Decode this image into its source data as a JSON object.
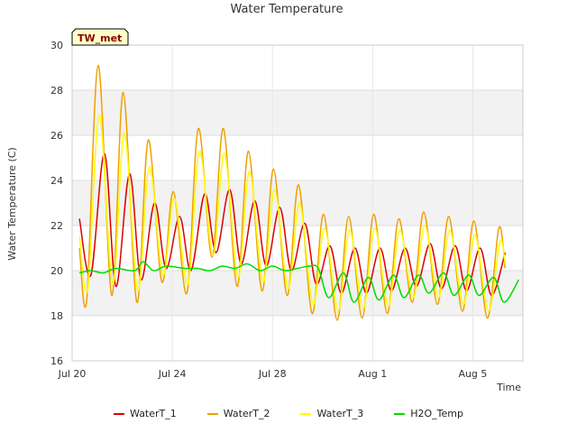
{
  "chart_data": {
    "type": "line",
    "title": "Water Temperature",
    "xlabel": "Time",
    "ylabel": "Water Temperature (C)",
    "station_tag": "TW_met",
    "ylim": [
      16,
      30
    ],
    "yticks": [
      "16",
      "18",
      "20",
      "22",
      "24",
      "26",
      "28",
      "30"
    ],
    "xlim": [
      "2023-07-20",
      "2023-08-07"
    ],
    "xticks": [
      {
        "date": "2023-07-20",
        "label": "Jul 20"
      },
      {
        "date": "2023-07-24",
        "label": "Jul 24"
      },
      {
        "date": "2023-07-28",
        "label": "Jul 28"
      },
      {
        "date": "2023-08-01",
        "label": "Aug 1"
      },
      {
        "date": "2023-08-05",
        "label": "Aug 5"
      }
    ],
    "grid": true,
    "legend_position": "bottom",
    "series": [
      {
        "name": "WaterT_1",
        "color": "#dd0000",
        "data": [
          [
            "2023-07-20T07:00",
            22.3
          ],
          [
            "2023-07-20T18:00",
            19.8
          ],
          [
            "2023-07-21T07:00",
            25.2
          ],
          [
            "2023-07-21T18:00",
            19.3
          ],
          [
            "2023-07-22T07:00",
            24.3
          ],
          [
            "2023-07-22T18:00",
            19.6
          ],
          [
            "2023-07-23T07:00",
            23.0
          ],
          [
            "2023-07-23T18:00",
            20.1
          ],
          [
            "2023-07-24T07:00",
            22.4
          ],
          [
            "2023-07-24T18:00",
            20.0
          ],
          [
            "2023-07-25T07:00",
            23.4
          ],
          [
            "2023-07-25T18:00",
            20.8
          ],
          [
            "2023-07-26T07:00",
            23.6
          ],
          [
            "2023-07-26T18:00",
            20.3
          ],
          [
            "2023-07-27T07:00",
            23.1
          ],
          [
            "2023-07-27T18:00",
            20.2
          ],
          [
            "2023-07-28T07:00",
            22.8
          ],
          [
            "2023-07-28T18:00",
            20.0
          ],
          [
            "2023-07-29T07:00",
            22.1
          ],
          [
            "2023-07-29T18:00",
            19.4
          ],
          [
            "2023-07-30T07:00",
            21.1
          ],
          [
            "2023-07-30T18:00",
            19.0
          ],
          [
            "2023-07-31T07:00",
            21.0
          ],
          [
            "2023-07-31T18:00",
            19.0
          ],
          [
            "2023-08-01T07:00",
            21.0
          ],
          [
            "2023-08-01T18:00",
            19.1
          ],
          [
            "2023-08-02T07:00",
            21.0
          ],
          [
            "2023-08-02T18:00",
            19.3
          ],
          [
            "2023-08-03T07:00",
            21.2
          ],
          [
            "2023-08-03T18:00",
            19.2
          ],
          [
            "2023-08-04T07:00",
            21.1
          ],
          [
            "2023-08-04T18:00",
            19.1
          ],
          [
            "2023-08-05T07:00",
            21.0
          ],
          [
            "2023-08-05T18:00",
            18.9
          ],
          [
            "2023-08-06T07:00",
            20.8
          ]
        ]
      },
      {
        "name": "WaterT_2",
        "color": "#f0a000",
        "data": [
          [
            "2023-07-20T07:00",
            21.0
          ],
          [
            "2023-07-20T14:00",
            18.7
          ],
          [
            "2023-07-21T01:00",
            29.1
          ],
          [
            "2023-07-21T14:00",
            18.9
          ],
          [
            "2023-07-22T01:00",
            27.9
          ],
          [
            "2023-07-22T14:00",
            18.6
          ],
          [
            "2023-07-23T01:00",
            25.8
          ],
          [
            "2023-07-23T14:00",
            19.5
          ],
          [
            "2023-07-24T01:00",
            23.5
          ],
          [
            "2023-07-24T14:00",
            19.0
          ],
          [
            "2023-07-25T01:00",
            26.3
          ],
          [
            "2023-07-25T14:00",
            20.6
          ],
          [
            "2023-07-26T01:00",
            26.3
          ],
          [
            "2023-07-26T14:00",
            19.3
          ],
          [
            "2023-07-27T01:00",
            25.3
          ],
          [
            "2023-07-27T14:00",
            19.1
          ],
          [
            "2023-07-28T01:00",
            24.5
          ],
          [
            "2023-07-28T14:00",
            18.9
          ],
          [
            "2023-07-29T01:00",
            23.8
          ],
          [
            "2023-07-29T14:00",
            18.1
          ],
          [
            "2023-07-30T01:00",
            22.5
          ],
          [
            "2023-07-30T14:00",
            17.8
          ],
          [
            "2023-07-31T01:00",
            22.4
          ],
          [
            "2023-07-31T14:00",
            17.9
          ],
          [
            "2023-08-01T01:00",
            22.5
          ],
          [
            "2023-08-01T14:00",
            18.1
          ],
          [
            "2023-08-02T01:00",
            22.3
          ],
          [
            "2023-08-02T14:00",
            18.6
          ],
          [
            "2023-08-03T01:00",
            22.6
          ],
          [
            "2023-08-03T14:00",
            18.5
          ],
          [
            "2023-08-04T01:00",
            22.4
          ],
          [
            "2023-08-04T14:00",
            18.2
          ],
          [
            "2023-08-05T01:00",
            22.2
          ],
          [
            "2023-08-05T14:00",
            17.9
          ],
          [
            "2023-08-06T01:00",
            21.9
          ],
          [
            "2023-08-06T07:00",
            20.1
          ]
        ]
      },
      {
        "name": "WaterT_3",
        "color": "#ffff00",
        "data": [
          [
            "2023-07-20T07:00",
            21.5
          ],
          [
            "2023-07-20T15:00",
            19.2
          ],
          [
            "2023-07-21T02:00",
            26.9
          ],
          [
            "2023-07-21T15:00",
            19.4
          ],
          [
            "2023-07-22T02:00",
            26.1
          ],
          [
            "2023-07-22T15:00",
            19.1
          ],
          [
            "2023-07-23T02:00",
            24.6
          ],
          [
            "2023-07-23T15:00",
            19.8
          ],
          [
            "2023-07-24T02:00",
            23.2
          ],
          [
            "2023-07-24T15:00",
            19.4
          ],
          [
            "2023-07-25T02:00",
            25.3
          ],
          [
            "2023-07-25T15:00",
            20.7
          ],
          [
            "2023-07-26T02:00",
            25.2
          ],
          [
            "2023-07-26T15:00",
            19.7
          ],
          [
            "2023-07-27T02:00",
            24.4
          ],
          [
            "2023-07-27T15:00",
            19.5
          ],
          [
            "2023-07-28T02:00",
            23.6
          ],
          [
            "2023-07-28T15:00",
            19.2
          ],
          [
            "2023-07-29T02:00",
            23.0
          ],
          [
            "2023-07-29T15:00",
            18.5
          ],
          [
            "2023-07-30T02:00",
            21.9
          ],
          [
            "2023-07-30T15:00",
            18.2
          ],
          [
            "2023-07-31T02:00",
            21.8
          ],
          [
            "2023-07-31T15:00",
            18.3
          ],
          [
            "2023-08-01T02:00",
            21.9
          ],
          [
            "2023-08-01T15:00",
            18.4
          ],
          [
            "2023-08-02T02:00",
            21.8
          ],
          [
            "2023-08-02T15:00",
            18.8
          ],
          [
            "2023-08-03T02:00",
            22.0
          ],
          [
            "2023-08-03T15:00",
            18.8
          ],
          [
            "2023-08-04T02:00",
            21.8
          ],
          [
            "2023-08-04T15:00",
            18.5
          ],
          [
            "2023-08-05T02:00",
            21.6
          ],
          [
            "2023-08-05T15:00",
            18.2
          ],
          [
            "2023-08-06T02:00",
            21.3
          ],
          [
            "2023-08-06T07:00",
            20.3
          ]
        ]
      },
      {
        "name": "H2O_Temp",
        "color": "#00dd00",
        "data": [
          [
            "2023-07-20T07:00",
            19.9
          ],
          [
            "2023-07-20T18:00",
            20.0
          ],
          [
            "2023-07-21T06:00",
            19.9
          ],
          [
            "2023-07-21T18:00",
            20.1
          ],
          [
            "2023-07-22T12:00",
            20.0
          ],
          [
            "2023-07-22T20:00",
            20.4
          ],
          [
            "2023-07-23T06:00",
            20.0
          ],
          [
            "2023-07-23T18:00",
            20.2
          ],
          [
            "2023-07-24T12:00",
            20.1
          ],
          [
            "2023-07-25T00:00",
            20.1
          ],
          [
            "2023-07-25T12:00",
            20.0
          ],
          [
            "2023-07-26T00:00",
            20.2
          ],
          [
            "2023-07-26T12:00",
            20.1
          ],
          [
            "2023-07-27T00:00",
            20.3
          ],
          [
            "2023-07-27T12:00",
            20.0
          ],
          [
            "2023-07-28T00:00",
            20.2
          ],
          [
            "2023-07-28T12:00",
            20.0
          ],
          [
            "2023-07-29T00:00",
            20.1
          ],
          [
            "2023-07-29T12:00",
            20.2
          ],
          [
            "2023-07-29T20:00",
            20.1
          ],
          [
            "2023-07-30T06:00",
            18.8
          ],
          [
            "2023-07-30T20:00",
            19.9
          ],
          [
            "2023-07-31T06:00",
            18.6
          ],
          [
            "2023-07-31T20:00",
            19.7
          ],
          [
            "2023-08-01T06:00",
            18.7
          ],
          [
            "2023-08-01T20:00",
            19.8
          ],
          [
            "2023-08-02T06:00",
            18.8
          ],
          [
            "2023-08-02T20:00",
            19.8
          ],
          [
            "2023-08-03T06:00",
            19.0
          ],
          [
            "2023-08-03T20:00",
            19.9
          ],
          [
            "2023-08-04T06:00",
            18.9
          ],
          [
            "2023-08-04T20:00",
            19.8
          ],
          [
            "2023-08-05T06:00",
            18.9
          ],
          [
            "2023-08-05T20:00",
            19.7
          ],
          [
            "2023-08-06T06:00",
            18.6
          ],
          [
            "2023-08-06T20:00",
            19.6
          ]
        ]
      }
    ]
  }
}
